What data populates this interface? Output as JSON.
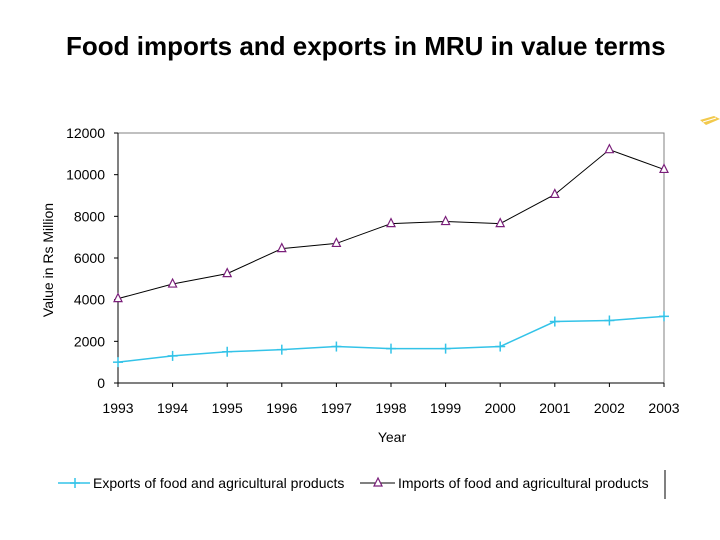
{
  "slide": {
    "title": "Food imports and exports in MRU in value terms",
    "accent_color": "#f2c94c"
  },
  "chart_data": {
    "type": "line",
    "title": "",
    "xlabel": "Year",
    "ylabel": "Value in Rs Million",
    "x": [
      "1993",
      "1994",
      "1995",
      "1996",
      "1997",
      "1998",
      "1999",
      "2000",
      "2001",
      "2002",
      "2003"
    ],
    "ylim": [
      0,
      12000
    ],
    "yticks": [
      "0",
      "2000",
      "4000",
      "6000",
      "8000",
      "10000",
      "12000"
    ],
    "grid": false,
    "legend_position": "bottom",
    "series": [
      {
        "name": "Exports of food and agricultural products",
        "marker": "plus",
        "color": "#33c3e8",
        "values": [
          1000,
          1300,
          1500,
          1600,
          1750,
          1650,
          1650,
          1750,
          2950,
          3000,
          3200
        ]
      },
      {
        "name": "Imports of food and agricultural products",
        "marker": "triangle",
        "color": "#7a1f7a",
        "values": [
          4050,
          4750,
          5250,
          6450,
          6700,
          7650,
          7750,
          7650,
          9050,
          11200,
          10250
        ]
      }
    ]
  }
}
